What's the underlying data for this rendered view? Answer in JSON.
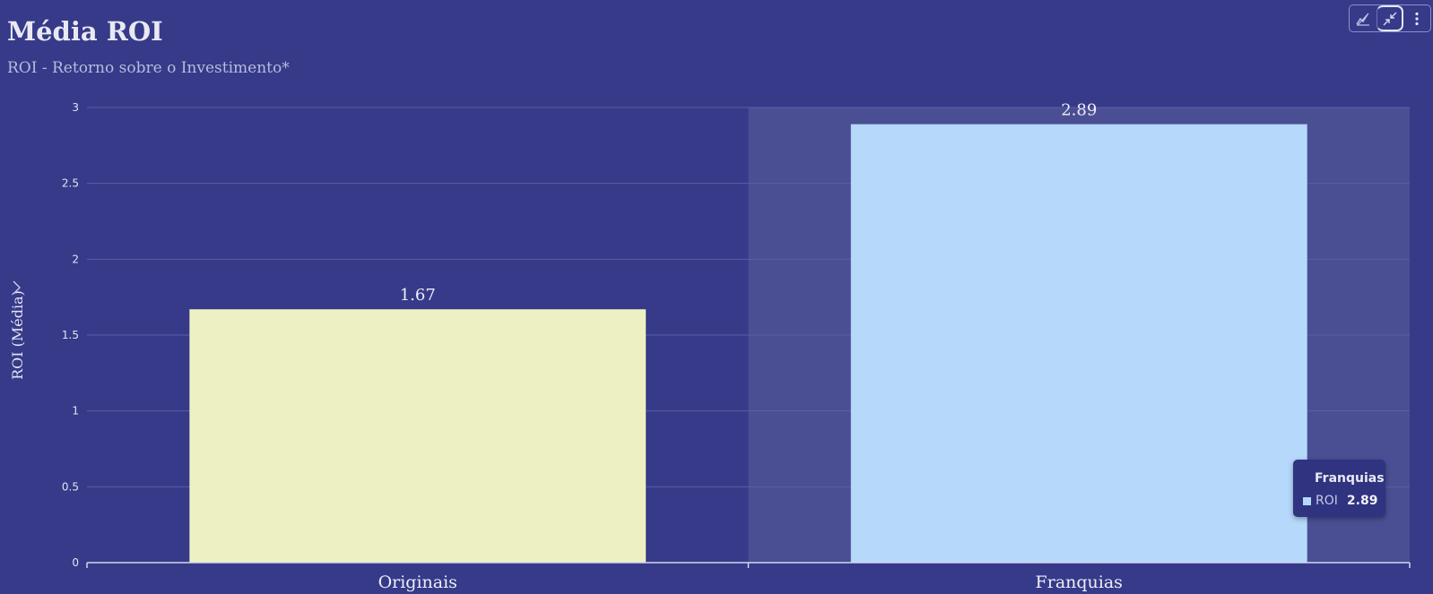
{
  "header": {
    "title": "Média ROI",
    "subtitle": "ROI - Retorno sobre o Investimento*"
  },
  "toolbar": {
    "icons": [
      "chart-clear-icon",
      "minimize-icon",
      "more-vertical-icon"
    ]
  },
  "colors": {
    "background": "#363a89",
    "hover_band": "#4a4f94",
    "bar_originais": "#edf0c2",
    "bar_franquias": "#b6d8fb"
  },
  "tooltip": {
    "title": "Franquias",
    "series": "ROI",
    "value": "2.89"
  },
  "chart_data": {
    "type": "bar",
    "categories": [
      "Originais",
      "Franquias"
    ],
    "series": [
      {
        "name": "ROI",
        "values": [
          1.67,
          2.89
        ]
      }
    ],
    "data_labels": [
      "1.67",
      "2.89"
    ],
    "xlabel": "",
    "ylabel": "ROI (Média)",
    "ylim": [
      0,
      3
    ],
    "yticks": [
      0,
      0.5,
      1,
      1.5,
      2,
      2.5,
      3
    ],
    "ytick_labels": [
      "0",
      "0.5",
      "1",
      "1.5",
      "2",
      "2.5",
      "3"
    ],
    "grid": true,
    "highlighted_category": "Franquias"
  }
}
